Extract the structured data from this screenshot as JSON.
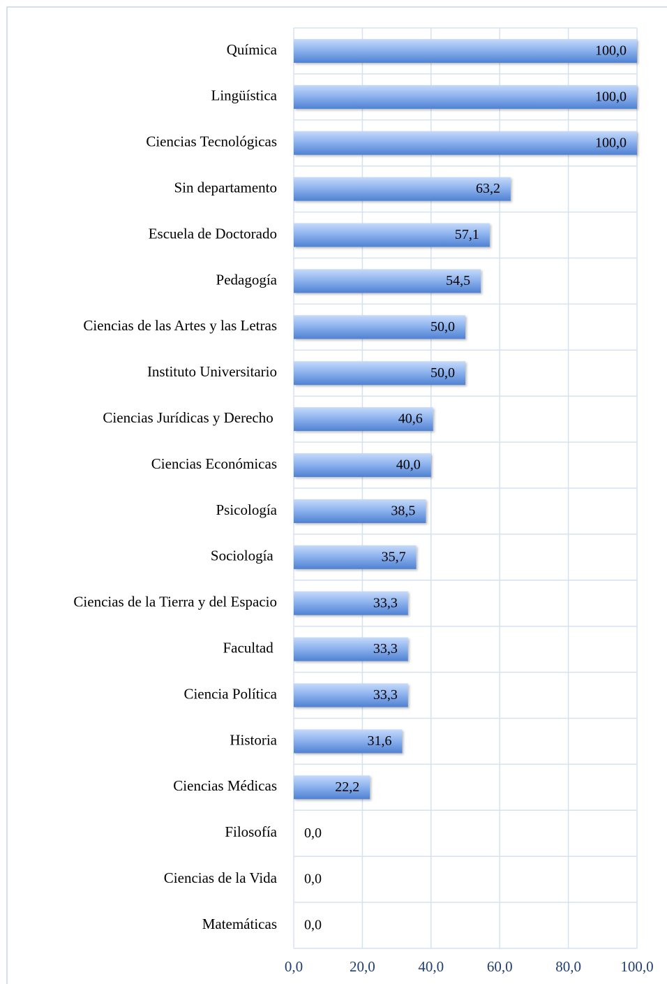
{
  "chart_data": {
    "type": "bar",
    "orientation": "horizontal",
    "categories": [
      "Química",
      "Lingüística",
      "Ciencias Tecnológicas",
      "Sin departamento",
      "Escuela de Doctorado",
      "Pedagogía",
      "Ciencias de las Artes y las Letras",
      "Instituto Universitario",
      "Ciencias Jurídicas y Derecho ",
      "Ciencias Económicas",
      "Psicología",
      "Sociología ",
      "Ciencias de la Tierra y del Espacio",
      "Facultad ",
      "Ciencia Política",
      "Historia",
      "Ciencias Médicas",
      "Filosofía",
      "Ciencias de la Vida",
      "Matemáticas"
    ],
    "values": [
      100,
      100,
      100,
      63.2,
      57.1,
      54.5,
      50,
      50,
      40.6,
      40,
      38.5,
      35.7,
      33.3,
      33.3,
      33.3,
      31.6,
      22.2,
      0,
      0,
      0
    ],
    "value_labels": [
      "100,0",
      "100,0",
      "100,0",
      "63,2",
      "57,1",
      "54,5",
      "50,0",
      "50,0",
      "40,6",
      "40,0",
      "38,5",
      "35,7",
      "33,3",
      "33,3",
      "33,3",
      "31,6",
      "22,2",
      "0,0",
      "0,0",
      "0,0"
    ],
    "color": "#4f81d2",
    "xlim": [
      0,
      100
    ],
    "xticks": [
      {
        "value": 0,
        "label": "0,0"
      },
      {
        "value": 20,
        "label": "20,0"
      },
      {
        "value": 40,
        "label": "40,0"
      },
      {
        "value": 60,
        "label": "60,0"
      },
      {
        "value": 80,
        "label": "80,0"
      },
      {
        "value": 100,
        "label": "100,0"
      }
    ],
    "grid": true
  }
}
